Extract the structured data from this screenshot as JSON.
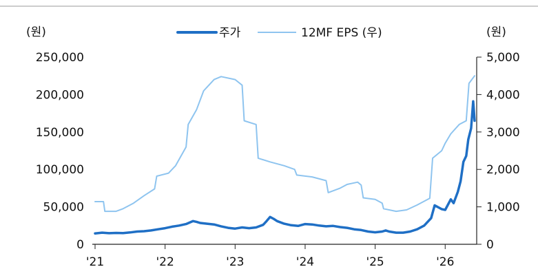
{
  "chart_data": {
    "type": "line",
    "title": "",
    "left_axis": {
      "unit_label": "(원)",
      "ylim": [
        0,
        250000
      ],
      "ticks": [
        0,
        50000,
        100000,
        150000,
        200000,
        250000
      ],
      "tick_labels": [
        "0",
        "50,000",
        "100,000",
        "150,000",
        "200,000",
        "250,000"
      ]
    },
    "right_axis": {
      "unit_label": "(원)",
      "ylim": [
        0,
        5000
      ],
      "ticks": [
        0,
        1000,
        2000,
        3000,
        4000,
        5000
      ],
      "tick_labels": [
        "0",
        "1,000",
        "2,000",
        "3,000",
        "4,000",
        "5,000"
      ]
    },
    "x_axis": {
      "xlim": [
        2021.0,
        2026.45
      ],
      "ticks": [
        2021,
        2022,
        2023,
        2024,
        2025,
        2026
      ],
      "tick_labels": [
        "'21",
        "'22",
        "'23",
        "'24",
        "'25",
        "'26"
      ]
    },
    "legend_position": "top-center",
    "series": [
      {
        "name": "주가",
        "axis": "left",
        "color": "#1f6fc5",
        "points": [
          [
            2021.0,
            14500
          ],
          [
            2021.1,
            15500
          ],
          [
            2021.2,
            14800
          ],
          [
            2021.3,
            15200
          ],
          [
            2021.4,
            15000
          ],
          [
            2021.5,
            15800
          ],
          [
            2021.6,
            17000
          ],
          [
            2021.7,
            17500
          ],
          [
            2021.8,
            18500
          ],
          [
            2021.9,
            20000
          ],
          [
            2022.0,
            21500
          ],
          [
            2022.1,
            23500
          ],
          [
            2022.2,
            25000
          ],
          [
            2022.3,
            27000
          ],
          [
            2022.4,
            31000
          ],
          [
            2022.45,
            30000
          ],
          [
            2022.5,
            28500
          ],
          [
            2022.6,
            27500
          ],
          [
            2022.7,
            26500
          ],
          [
            2022.8,
            24000
          ],
          [
            2022.9,
            22000
          ],
          [
            2023.0,
            21000
          ],
          [
            2023.1,
            22500
          ],
          [
            2023.2,
            21500
          ],
          [
            2023.3,
            22500
          ],
          [
            2023.4,
            26000
          ],
          [
            2023.45,
            31000
          ],
          [
            2023.5,
            36500
          ],
          [
            2023.55,
            34000
          ],
          [
            2023.6,
            31000
          ],
          [
            2023.7,
            27500
          ],
          [
            2023.8,
            25500
          ],
          [
            2023.9,
            24500
          ],
          [
            2024.0,
            27000
          ],
          [
            2024.1,
            26500
          ],
          [
            2024.2,
            25000
          ],
          [
            2024.3,
            24000
          ],
          [
            2024.4,
            24500
          ],
          [
            2024.5,
            23000
          ],
          [
            2024.6,
            22000
          ],
          [
            2024.7,
            20000
          ],
          [
            2024.8,
            19000
          ],
          [
            2024.9,
            17000
          ],
          [
            2025.0,
            16000
          ],
          [
            2025.1,
            17000
          ],
          [
            2025.15,
            18500
          ],
          [
            2025.2,
            17000
          ],
          [
            2025.3,
            15500
          ],
          [
            2025.4,
            15500
          ],
          [
            2025.5,
            17000
          ],
          [
            2025.6,
            20000
          ],
          [
            2025.7,
            25000
          ],
          [
            2025.8,
            35000
          ],
          [
            2025.85,
            52000
          ],
          [
            2025.95,
            47000
          ],
          [
            2026.0,
            46000
          ],
          [
            2026.08,
            60000
          ],
          [
            2026.12,
            55000
          ],
          [
            2026.18,
            70000
          ],
          [
            2026.22,
            84000
          ],
          [
            2026.26,
            110000
          ],
          [
            2026.3,
            118000
          ],
          [
            2026.33,
            140000
          ],
          [
            2026.37,
            155000
          ],
          [
            2026.4,
            191000
          ],
          [
            2026.42,
            165000
          ]
        ]
      },
      {
        "name": "12MF EPS (우)",
        "axis": "right",
        "color": "#8ec4ef",
        "points": [
          [
            2021.0,
            1140
          ],
          [
            2021.12,
            1140
          ],
          [
            2021.14,
            880
          ],
          [
            2021.3,
            880
          ],
          [
            2021.4,
            950
          ],
          [
            2021.55,
            1100
          ],
          [
            2021.7,
            1300
          ],
          [
            2021.85,
            1480
          ],
          [
            2021.88,
            1820
          ],
          [
            2022.05,
            1900
          ],
          [
            2022.15,
            2100
          ],
          [
            2022.3,
            2600
          ],
          [
            2022.33,
            3200
          ],
          [
            2022.45,
            3600
          ],
          [
            2022.55,
            4100
          ],
          [
            2022.7,
            4400
          ],
          [
            2022.8,
            4480
          ],
          [
            2023.0,
            4400
          ],
          [
            2023.1,
            4250
          ],
          [
            2023.13,
            3300
          ],
          [
            2023.3,
            3200
          ],
          [
            2023.33,
            2300
          ],
          [
            2023.5,
            2200
          ],
          [
            2023.7,
            2100
          ],
          [
            2023.85,
            2000
          ],
          [
            2023.88,
            1850
          ],
          [
            2024.1,
            1800
          ],
          [
            2024.3,
            1700
          ],
          [
            2024.33,
            1380
          ],
          [
            2024.5,
            1500
          ],
          [
            2024.6,
            1600
          ],
          [
            2024.75,
            1660
          ],
          [
            2024.8,
            1580
          ],
          [
            2024.83,
            1240
          ],
          [
            2025.0,
            1200
          ],
          [
            2025.1,
            1100
          ],
          [
            2025.12,
            950
          ],
          [
            2025.3,
            880
          ],
          [
            2025.45,
            920
          ],
          [
            2025.6,
            1050
          ],
          [
            2025.78,
            1230
          ],
          [
            2025.82,
            2300
          ],
          [
            2025.95,
            2500
          ],
          [
            2026.0,
            2700
          ],
          [
            2026.08,
            2950
          ],
          [
            2026.2,
            3200
          ],
          [
            2026.3,
            3300
          ],
          [
            2026.34,
            4300
          ],
          [
            2026.42,
            4500
          ]
        ]
      }
    ]
  }
}
